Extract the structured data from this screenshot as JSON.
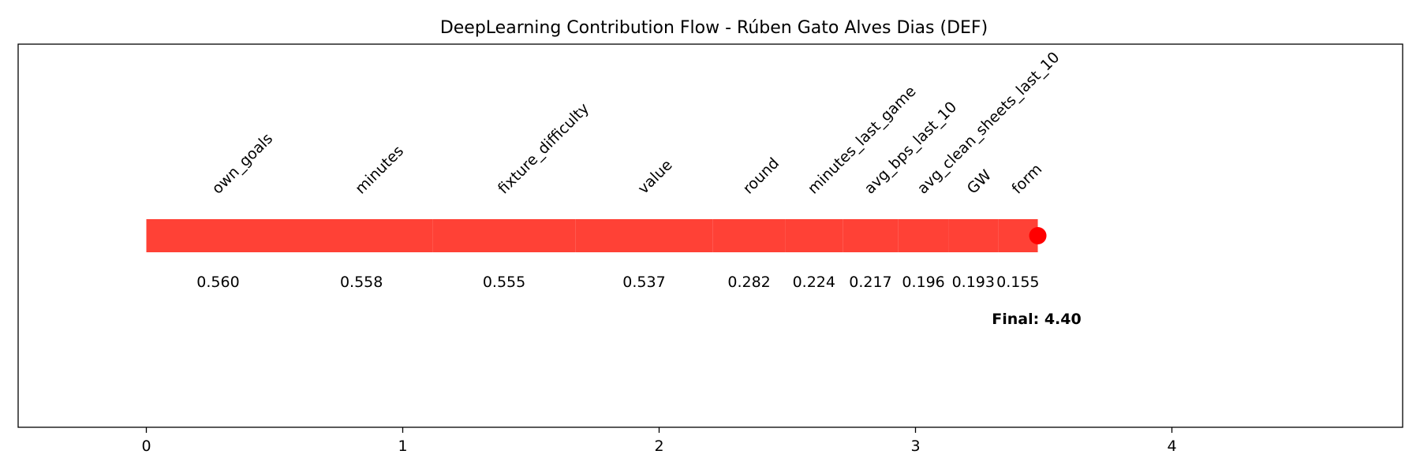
{
  "chart_data": {
    "type": "bar",
    "title": "DeepLearning Contribution Flow - Rúben Gato Alves Dias (DEF)",
    "xlabel": "",
    "ylabel": "",
    "xlim": [
      -0.5,
      4.9
    ],
    "xticks": [
      0,
      1,
      2,
      3,
      4
    ],
    "grid": false,
    "bar_color": "#ff4136",
    "marker_color": "#ff0000",
    "total": 3.477,
    "final_label": "Final: 4.40",
    "contributions": [
      {
        "feature": "own_goals",
        "value": 0.56,
        "label": "0.560"
      },
      {
        "feature": "minutes",
        "value": 0.558,
        "label": "0.558"
      },
      {
        "feature": "fixture_difficulty",
        "value": 0.555,
        "label": "0.555"
      },
      {
        "feature": "value",
        "value": 0.537,
        "label": "0.537"
      },
      {
        "feature": "round",
        "value": 0.282,
        "label": "0.282"
      },
      {
        "feature": "minutes_last_game",
        "value": 0.224,
        "label": "0.224"
      },
      {
        "feature": "avg_bps_last_10",
        "value": 0.217,
        "label": "0.217"
      },
      {
        "feature": "avg_clean_sheets_last_10",
        "value": 0.196,
        "label": "0.196"
      },
      {
        "feature": "GW",
        "value": 0.193,
        "label": "0.193"
      },
      {
        "feature": "form",
        "value": 0.155,
        "label": "0.155"
      }
    ]
  }
}
